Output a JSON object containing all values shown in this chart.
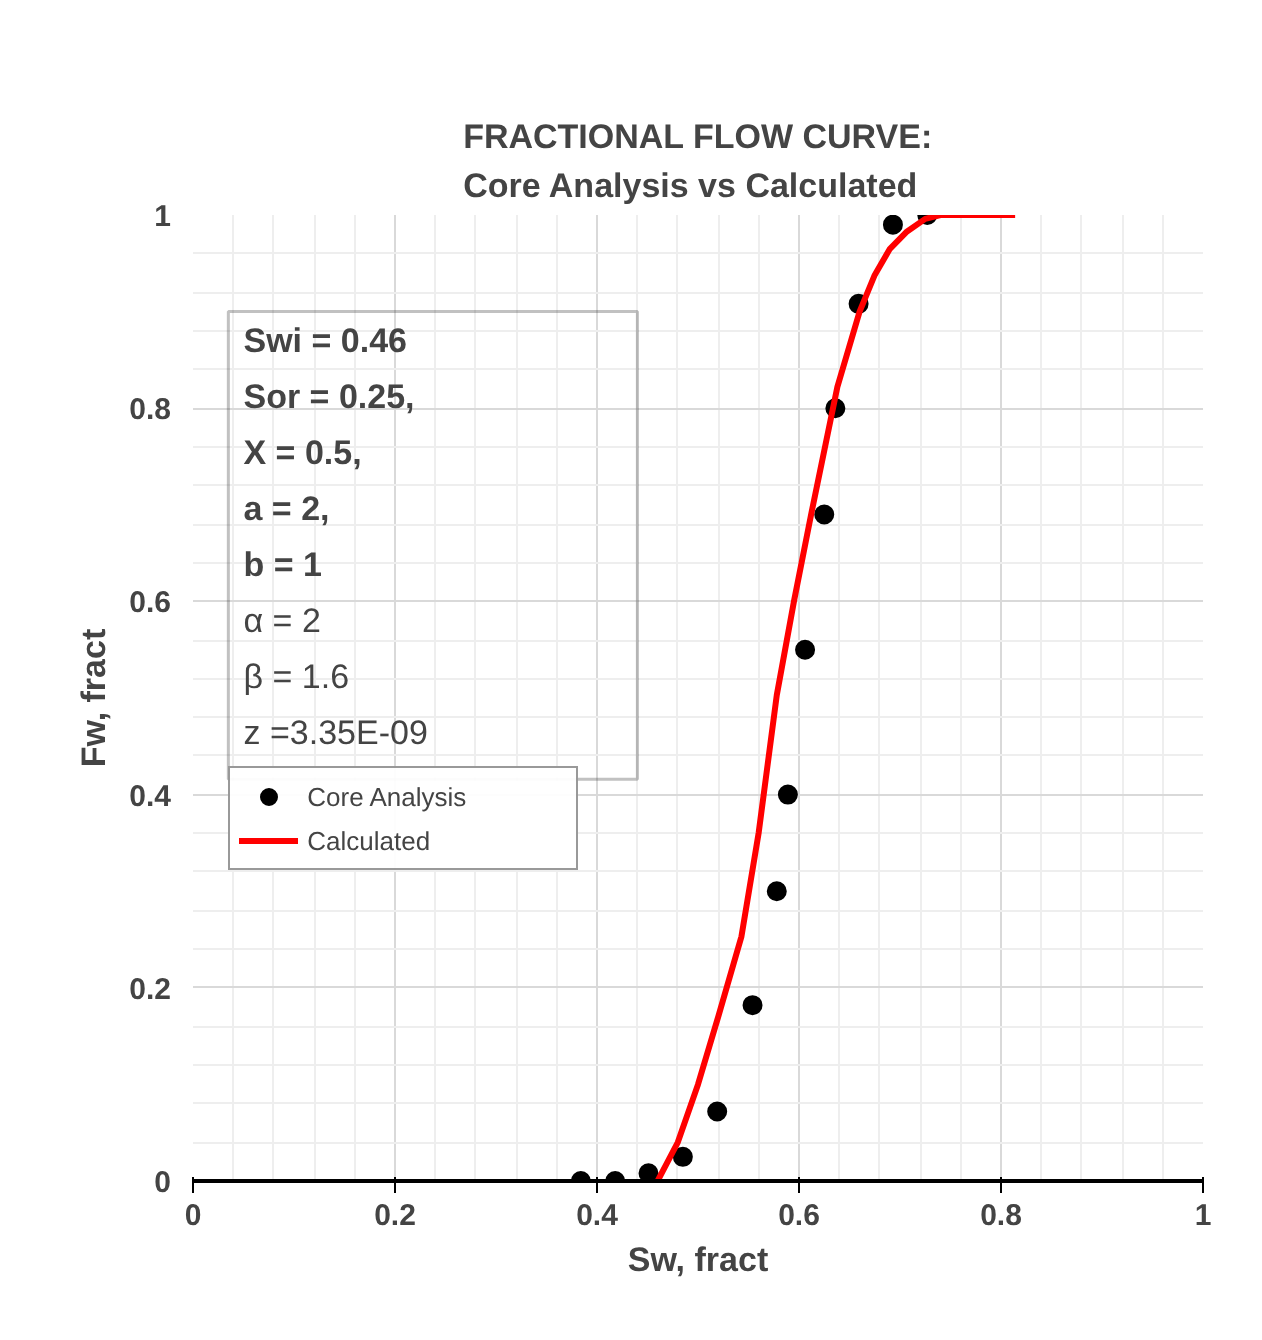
{
  "chart_data": {
    "type": "scatter",
    "title": "FRACTIONAL FLOW CURVE:\nCore Analysis vs Calculated",
    "xlabel": "Sw, fract",
    "ylabel": "Fw, fract",
    "xlim": [
      0,
      1
    ],
    "ylim": [
      0,
      1
    ],
    "xticks": [
      0,
      0.2,
      0.4,
      0.6,
      0.8,
      1
    ],
    "yticks": [
      0,
      0.2,
      0.4,
      0.6,
      0.8,
      1
    ],
    "grid": true,
    "legend": "left",
    "marker": "circle",
    "annotations": [
      "Swi  = 0.46",
      "Sor  = 0.25,",
      "X      = 0.5,",
      "a       = 2,",
      "b       = 1",
      "α     = 2",
      "β     = 1.6",
      "z     =3.35E-09"
    ],
    "series": [
      {
        "name": "Core Analysis",
        "color": "#000000",
        "x": [
          0.384,
          0.418,
          0.451,
          0.485,
          0.519,
          0.554,
          0.578,
          0.589,
          0.606,
          0.625,
          0.636,
          0.659,
          0.693,
          0.727
        ],
        "values": [
          0,
          0,
          0.008,
          0.025,
          0.072,
          0.182,
          0.3,
          0.4,
          0.55,
          0.69,
          0.8,
          0.908,
          0.99,
          1.0
        ]
      },
      {
        "name": "Calculated",
        "type": "line",
        "color": "#ff0000",
        "marker": "none",
        "line_style": "solid",
        "x": [
          0.46,
          0.48,
          0.5,
          0.52,
          0.543,
          0.56,
          0.578,
          0.595,
          0.612,
          0.638,
          0.66,
          0.675,
          0.69,
          0.707,
          0.725,
          0.74,
          0.814
        ],
        "values": [
          0,
          0.04,
          0.1,
          0.17,
          0.253,
          0.36,
          0.503,
          0.6,
          0.69,
          0.822,
          0.9,
          0.938,
          0.965,
          0.983,
          0.996,
          1,
          1
        ]
      }
    ]
  }
}
